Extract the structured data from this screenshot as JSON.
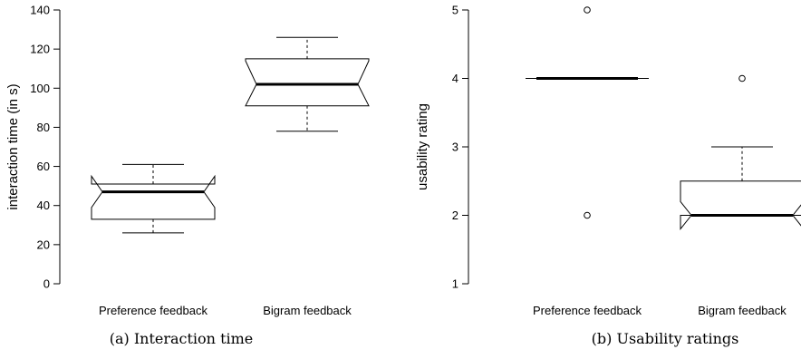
{
  "chart_data": [
    {
      "type": "box",
      "title": "",
      "caption": "(a) Interaction time",
      "xlabel": "",
      "ylabel": "interaction time (in s)",
      "ylim": [
        0,
        140
      ],
      "yticks": [
        0,
        20,
        40,
        60,
        80,
        100,
        120,
        140
      ],
      "notched": true,
      "grid": false,
      "categories": [
        "Preference feedback",
        "Bigram feedback"
      ],
      "boxes": [
        {
          "name": "Preference feedback",
          "whisker_low": 26,
          "q1": 33,
          "median": 47,
          "q3": 51,
          "whisker_high": 61,
          "notch_low": 39,
          "notch_high": 55,
          "outliers": []
        },
        {
          "name": "Bigram feedback",
          "whisker_low": 78,
          "q1": 91,
          "median": 102,
          "q3": 115,
          "whisker_high": 126,
          "notch_low": 91,
          "notch_high": 114,
          "outliers": []
        }
      ]
    },
    {
      "type": "box",
      "title": "",
      "caption": "(b) Usability ratings",
      "xlabel": "",
      "ylabel": "usability rating",
      "ylim": [
        1,
        5
      ],
      "yticks": [
        1,
        2,
        3,
        4,
        5
      ],
      "notched": true,
      "grid": false,
      "categories": [
        "Preference feedback",
        "Bigram feedback"
      ],
      "boxes": [
        {
          "name": "Preference feedback",
          "whisker_low": 4,
          "q1": 4,
          "median": 4,
          "q3": 4,
          "whisker_high": 4,
          "notch_low": 4,
          "notch_high": 4,
          "outliers": [
            5,
            2
          ]
        },
        {
          "name": "Bigram feedback",
          "whisker_low": 2,
          "q1": 2,
          "median": 2,
          "q3": 2.5,
          "whisker_high": 3,
          "notch_low": 1.8,
          "notch_high": 2.2,
          "outliers": [
            4
          ]
        }
      ]
    }
  ]
}
